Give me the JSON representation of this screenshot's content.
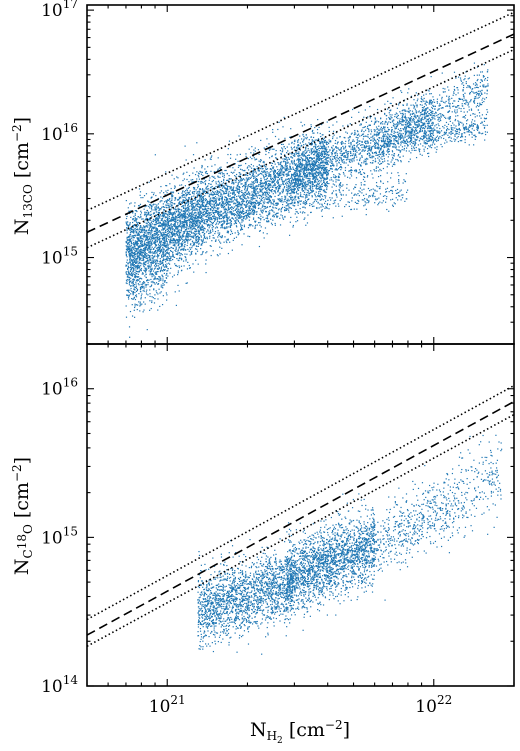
{
  "chart_data": [
    {
      "type": "scatter",
      "panel": "top",
      "xscale": "log",
      "yscale": "log",
      "xlim": [
        5e+20,
        2e+22
      ],
      "ylim": [
        200000000000000.0,
        1.1e+17
      ],
      "ylabel_main": "N",
      "ylabel_sub_sup": "13",
      "ylabel_sub": "CO",
      "ylabel_unit": " [cm",
      "ylabel_unit_sup": "−2",
      "ylabel_unit_end": "]",
      "yticks": [
        1000000000000000.0,
        1e+16,
        1e+17
      ],
      "ytick_labels": [
        {
          "base": "10",
          "exp": "15"
        },
        {
          "base": "10",
          "exp": "16"
        },
        {
          "base": "10",
          "exp": "17"
        }
      ],
      "point_color": "#1f77b4",
      "lines": [
        {
          "style": "dashed",
          "x": [
            5e+20,
            2e+22
          ],
          "y": [
            1600000000000000.0,
            6.4e+16
          ]
        },
        {
          "style": "dotted",
          "x": [
            5e+20,
            2e+22
          ],
          "y": [
            2400000000000000.0,
            9.6e+16
          ]
        },
        {
          "style": "dotted",
          "x": [
            5e+20,
            2e+22
          ],
          "y": [
            1200000000000000.0,
            4.8e+16
          ]
        }
      ],
      "point_clusters": [
        {
          "n": 2600,
          "x": [
            7e+20,
            1.4e+21
          ],
          "y_at_x0": 1100000000000000.0,
          "y_at_x1": 2400000000000000.0,
          "scatter_dex": 0.17
        },
        {
          "n": 2600,
          "x": [
            1.4e+21,
            4e+21
          ],
          "y_at_x0": 2400000000000000.0,
          "y_at_x1": 6000000000000000.0,
          "scatter_dex": 0.15
        },
        {
          "n": 1500,
          "x": [
            3e+21,
            1e+22
          ],
          "y_at_x0": 4500000000000000.0,
          "y_at_x1": 1.3e+16,
          "scatter_dex": 0.12
        },
        {
          "n": 700,
          "x": [
            6e+21,
            1.6e+22
          ],
          "y_at_x0": 8000000000000000.0,
          "y_at_x1": 2.4e+16,
          "scatter_dex": 0.1
        },
        {
          "n": 500,
          "x": [
            1e+21,
            8e+21
          ],
          "y_at_x0": 1800000000000000.0,
          "y_at_x1": 3600000000000000.0,
          "scatter_dex": 0.07
        },
        {
          "n": 250,
          "x": [
            9e+21,
            1.6e+22
          ],
          "y_at_x0": 9000000000000000.0,
          "y_at_x1": 1.2e+16,
          "scatter_dex": 0.05
        },
        {
          "n": 350,
          "x": [
            7e+20,
            1e+21
          ],
          "y_at_x0": 600000000000000.0,
          "y_at_x1": 900000000000000.0,
          "scatter_dex": 0.15
        }
      ]
    },
    {
      "type": "scatter",
      "panel": "bottom",
      "xscale": "log",
      "yscale": "log",
      "xlim": [
        5e+20,
        2e+22
      ],
      "ylim": [
        100000000000000.0,
        2e+16
      ],
      "ylabel_main": "N",
      "ylabel_sub": "C",
      "ylabel_sub_sup": "18",
      "ylabel_sub_end": "O",
      "ylabel_unit": " [cm",
      "ylabel_unit_sup": "−2",
      "ylabel_unit_end": "]",
      "xlabel_main": "N",
      "xlabel_sub": "H",
      "xlabel_sub_sub": "2",
      "xlabel_unit": " [cm",
      "xlabel_unit_sup": "−2",
      "xlabel_unit_end": "]",
      "xticks": [
        1e+21,
        1e+22
      ],
      "xtick_labels": [
        {
          "base": "10",
          "exp": "21"
        },
        {
          "base": "10",
          "exp": "22"
        }
      ],
      "yticks": [
        100000000000000.0,
        1000000000000000.0,
        1e+16
      ],
      "ytick_labels": [
        {
          "base": "10",
          "exp": "14"
        },
        {
          "base": "10",
          "exp": "15"
        },
        {
          "base": "10",
          "exp": "16"
        }
      ],
      "point_color": "#1f77b4",
      "lines": [
        {
          "style": "dashed",
          "x": [
            5e+20,
            2e+22
          ],
          "y": [
            220000000000000.0,
            8200000000000000.0
          ]
        },
        {
          "style": "dotted",
          "x": [
            5e+20,
            2e+22
          ],
          "y": [
            280000000000000.0,
            1.05e+16
          ]
        },
        {
          "style": "dotted",
          "x": [
            5e+20,
            2e+22
          ],
          "y": [
            185000000000000.0,
            6700000000000000.0
          ]
        }
      ],
      "point_clusters": [
        {
          "n": 1800,
          "x": [
            1.3e+21,
            3e+21
          ],
          "y_at_x0": 320000000000000.0,
          "y_at_x1": 500000000000000.0,
          "scatter_dex": 0.12
        },
        {
          "n": 2000,
          "x": [
            2.8e+21,
            6e+21
          ],
          "y_at_x0": 520000000000000.0,
          "y_at_x1": 900000000000000.0,
          "scatter_dex": 0.12
        },
        {
          "n": 500,
          "x": [
            6e+21,
            1.2e+22
          ],
          "y_at_x0": 900000000000000.0,
          "y_at_x1": 1700000000000000.0,
          "scatter_dex": 0.12
        },
        {
          "n": 200,
          "x": [
            1.2e+22,
            1.8e+22
          ],
          "y_at_x0": 1800000000000000.0,
          "y_at_x1": 2800000000000000.0,
          "scatter_dex": 0.13
        }
      ]
    }
  ]
}
